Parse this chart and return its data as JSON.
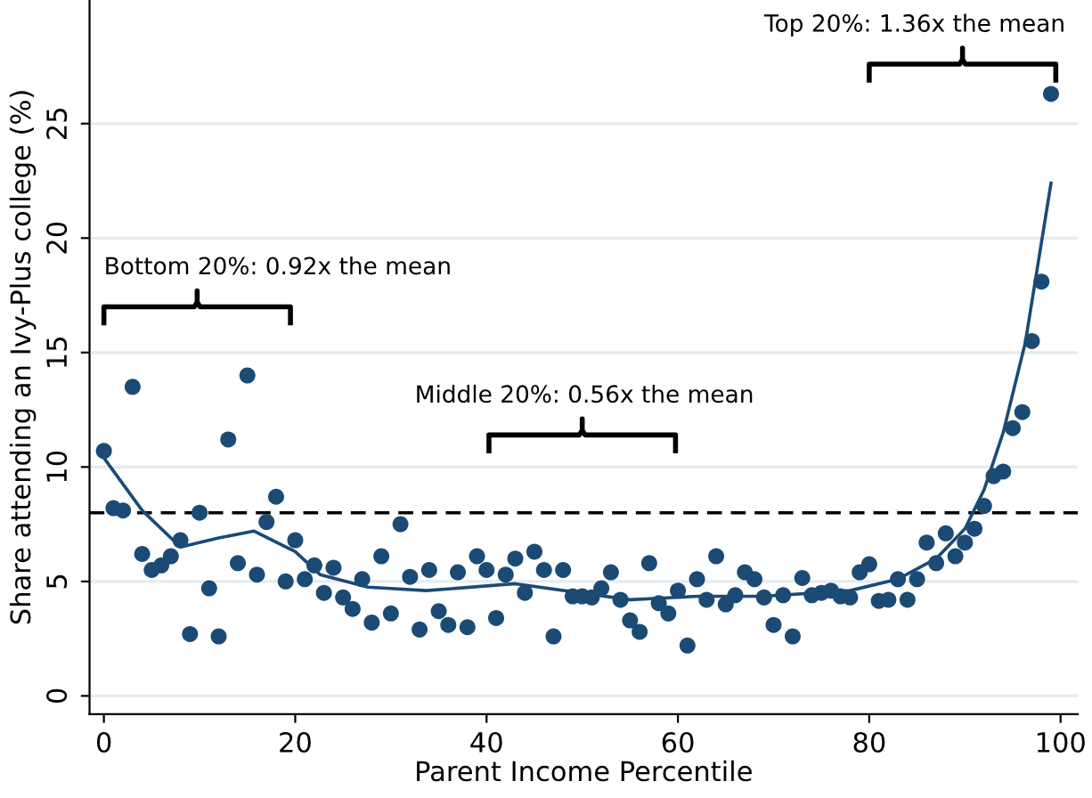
{
  "chart_data": {
    "type": "scatter",
    "xlabel": "Parent Income Percentile",
    "ylabel": "Share attending an Ivy-Plus college (%)",
    "xlim": [
      -1.5,
      101.8
    ],
    "ylim": [
      -0.8,
      30.4
    ],
    "xticks": [
      0,
      20,
      40,
      60,
      80,
      100
    ],
    "yticks": [
      0,
      5,
      10,
      15,
      20,
      25
    ],
    "grid": "y",
    "series": [
      {
        "color": "#1b4a75",
        "marker": "circle",
        "x": [
          0,
          1,
          2,
          3,
          4,
          5,
          6,
          7,
          8,
          9,
          10,
          11,
          12,
          13,
          14,
          15,
          16,
          17,
          18,
          19,
          20,
          21,
          22,
          23,
          24,
          25,
          26,
          27,
          28,
          29,
          30,
          31,
          32,
          33,
          34,
          35,
          36,
          37,
          38,
          39,
          40,
          41,
          42,
          43,
          44,
          45,
          46,
          47,
          48,
          49,
          50,
          51,
          52,
          53,
          54,
          55,
          56,
          57,
          58,
          59,
          60,
          61,
          62,
          63,
          64,
          65,
          66,
          67,
          68,
          69,
          70,
          71,
          72,
          73,
          74,
          75,
          76,
          77,
          78,
          79,
          80,
          81,
          82,
          83,
          84,
          85,
          86,
          87,
          88,
          89,
          90,
          91,
          92,
          93,
          94,
          95,
          96,
          97,
          98,
          99
        ],
        "values": [
          10.7,
          8.2,
          8.1,
          13.5,
          6.2,
          5.5,
          5.7,
          6.1,
          6.8,
          2.7,
          8.0,
          4.7,
          2.6,
          11.2,
          5.8,
          14.0,
          5.3,
          7.6,
          8.7,
          5.0,
          6.8,
          5.1,
          5.7,
          4.5,
          5.6,
          4.3,
          3.8,
          5.1,
          3.2,
          6.1,
          3.6,
          7.5,
          5.2,
          2.9,
          5.5,
          3.7,
          3.1,
          5.4,
          3.0,
          6.1,
          5.5,
          3.4,
          5.3,
          6.0,
          4.5,
          6.3,
          5.5,
          2.6,
          5.5,
          4.35,
          4.35,
          4.3,
          4.7,
          5.4,
          4.2,
          3.3,
          2.8,
          5.8,
          4.05,
          3.6,
          4.6,
          2.2,
          5.1,
          4.2,
          6.1,
          4.0,
          4.4,
          5.4,
          5.1,
          4.3,
          3.1,
          4.4,
          2.6,
          5.15,
          4.4,
          4.5,
          4.6,
          4.35,
          4.3,
          5.4,
          5.75,
          4.15,
          4.2,
          5.1,
          4.2,
          5.1,
          6.7,
          5.8,
          7.1,
          6.1,
          6.7,
          7.3,
          8.3,
          9.6,
          9.8,
          11.7,
          12.4,
          15.5,
          18.1,
          26.3
        ]
      },
      {
        "type": "line",
        "color": "#1b4a75",
        "marker": "none",
        "line_style": "solid",
        "x": [
          0,
          4,
          8,
          12,
          15.7,
          20,
          22.6,
          27.6,
          33.7,
          43,
          55,
          62,
          69,
          78,
          83,
          87,
          90,
          92,
          94,
          96,
          96.3,
          99
        ],
        "values": [
          10.4,
          8.1,
          6.5,
          6.9,
          7.2,
          6.3,
          5.3,
          4.75,
          4.6,
          4.9,
          4.2,
          4.35,
          4.35,
          4.6,
          5.1,
          6.0,
          7.3,
          9.0,
          11.5,
          14.9,
          15.4,
          22.4
        ]
      }
    ],
    "ref_lines": [
      {
        "axis": "y",
        "value": 8.0,
        "color": "#000000",
        "line_style": "dashed"
      }
    ],
    "annotations": [
      "Bottom 20%: 0.92x the mean",
      "Middle 20%: 0.56x the mean",
      "Top 20%: 1.36x the mean"
    ]
  }
}
